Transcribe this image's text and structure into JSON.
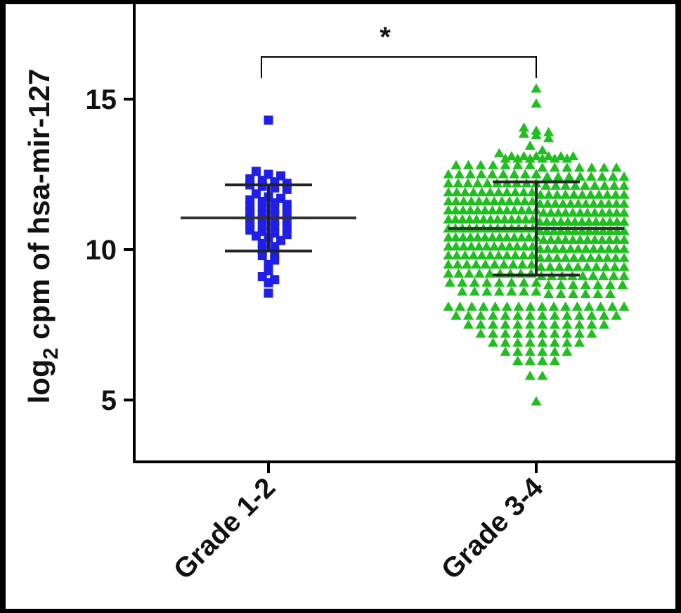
{
  "chart_data": {
    "type": "scatter",
    "ylabel_main": "log",
    "ylabel_sub": "2",
    "ylabel_rest": " cpm of hsa-mir-127",
    "ylim": [
      3,
      18
    ],
    "yticks": [
      5,
      10,
      15
    ],
    "categories": [
      "Grade 1-2",
      "Grade 3-4"
    ],
    "significance": "*",
    "series": [
      {
        "category": "Grade 1-2",
        "marker": "square",
        "color": "#1f1fe6",
        "mean": 11.05,
        "sd_upper": 12.15,
        "sd_lower": 9.95,
        "values": [
          14.3,
          12.6,
          12.5,
          12.45,
          12.35,
          12.3,
          12.25,
          12.2,
          12.15,
          12.1,
          12.05,
          12.0,
          11.85,
          11.75,
          11.7,
          11.65,
          11.6,
          11.55,
          11.5,
          11.45,
          11.4,
          11.35,
          11.3,
          11.25,
          11.2,
          11.15,
          11.1,
          11.05,
          11.0,
          10.95,
          10.9,
          10.85,
          10.8,
          10.75,
          10.7,
          10.65,
          10.6,
          10.55,
          10.5,
          10.45,
          10.4,
          10.3,
          10.2,
          10.1,
          10.0,
          9.9,
          9.8,
          9.65,
          9.5,
          9.3,
          9.1,
          9.0,
          8.9,
          8.55
        ]
      },
      {
        "category": "Grade 3-4",
        "marker": "triangle",
        "color": "#1fbf1f",
        "mean": 10.7,
        "sd_upper": 12.25,
        "sd_lower": 9.15,
        "values": []
      }
    ]
  }
}
